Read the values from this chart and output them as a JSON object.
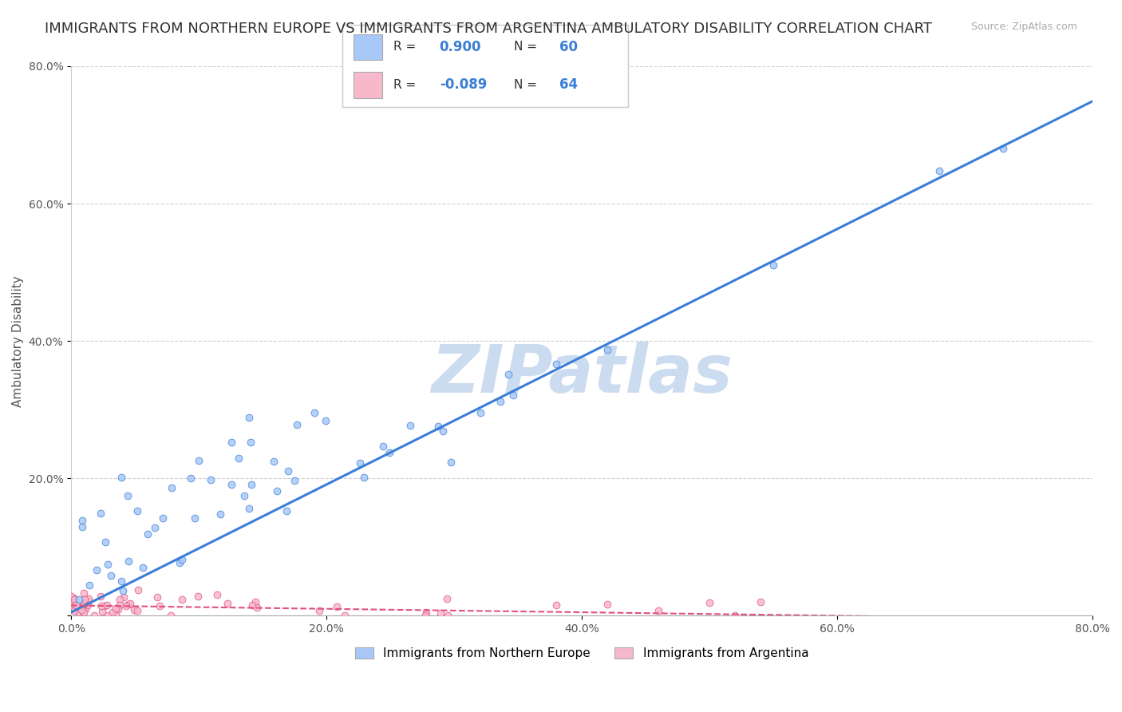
{
  "title": "IMMIGRANTS FROM NORTHERN EUROPE VS IMMIGRANTS FROM ARGENTINA AMBULATORY DISABILITY CORRELATION CHART",
  "source": "Source: ZipAtlas.com",
  "ylabel": "Ambulatory Disability",
  "xlabel": "",
  "watermark": "ZIPatlas",
  "xlim": [
    0.0,
    0.8
  ],
  "ylim": [
    0.0,
    0.8
  ],
  "xticks": [
    0.0,
    0.2,
    0.4,
    0.6,
    0.8
  ],
  "yticks": [
    0.0,
    0.2,
    0.4,
    0.6,
    0.8
  ],
  "xtick_labels": [
    "0.0%",
    "20.0%",
    "40.0%",
    "60.0%",
    "80.0%"
  ],
  "ytick_labels": [
    "",
    "20.0%",
    "40.0%",
    "60.0%",
    "80.0%"
  ],
  "series": [
    {
      "name": "Immigrants from Northern Europe",
      "R": 0.9,
      "N": 60,
      "color": "#a8c8f8",
      "trend_color": "#3a7fd5",
      "marker_size": 40
    },
    {
      "name": "Immigrants from Argentina",
      "R": -0.089,
      "N": 64,
      "color": "#f8b8cc",
      "trend_color": "#e05080",
      "marker_size": 40
    }
  ],
  "legend_R_color": "#3a7fd5",
  "legend_N_color": "#3a7fd5",
  "background_color": "#ffffff",
  "grid_color": "#cccccc",
  "title_fontsize": 13,
  "axis_label_fontsize": 11,
  "tick_fontsize": 10,
  "watermark_color": "#ccdcf0",
  "watermark_fontsize": 60,
  "slope_blue": 0.93,
  "intercept_blue": 0.005,
  "slope_pink": -0.025,
  "intercept_pink": 0.015
}
